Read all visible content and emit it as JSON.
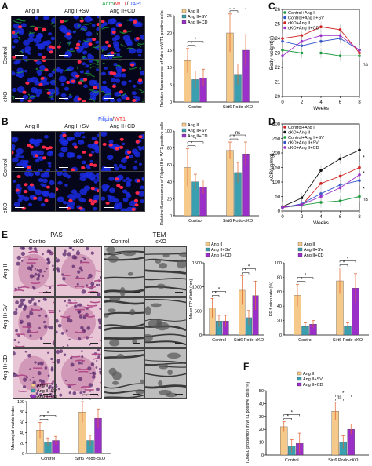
{
  "panels": {
    "A": {
      "letter": "A",
      "stain": {
        "p1": "Adrp",
        "sep1": "/",
        "p2": "WT1",
        "sep2": "/",
        "p3": "DAPI",
        "c1": "#22b14c",
        "c2": "#ff3030",
        "c3": "#3355ff"
      },
      "columns": [
        "Ang II",
        "Ang II+SV",
        "Ang II+CD"
      ],
      "rows": [
        "Control",
        "cKO"
      ],
      "chart": {
        "ylabel": "Relative fluorescence of Adrp in WT1 positive cells",
        "yticks": [
          "0",
          "5",
          "10",
          "15",
          "20",
          "25"
        ],
        "ylim": [
          0,
          25
        ],
        "groups": [
          "Control",
          "Sirt6 Podo-cKO"
        ],
        "legend": [
          "Ang II",
          "Ang II+SV",
          "Ang II+CD"
        ],
        "sig": [
          "*",
          "*",
          "*",
          "ns"
        ]
      }
    },
    "B": {
      "letter": "B",
      "stain": {
        "p1": "Filipin",
        "sep1": "/",
        "p2": "WT1",
        "c1": "#3355ff",
        "c2": "#ff3030"
      },
      "columns": [
        "Ang II",
        "Ang II+SV",
        "Ang II+CD"
      ],
      "rows": [
        "Control",
        "cKO"
      ],
      "chart": {
        "ylabel": "Relative fluorescence of Filipin III in WT1 positive cells",
        "yticks": [
          "0",
          "20",
          "40",
          "60",
          "80",
          "100"
        ],
        "ylim": [
          0,
          100
        ],
        "groups": [
          "Control",
          "Sirt6 Podo-cKO"
        ],
        "legend": [
          "Ang II",
          "Ang II+SV",
          "Ang II+CD"
        ],
        "sig": [
          "*",
          "*",
          "*",
          "ns"
        ]
      }
    },
    "C": {
      "letter": "C",
      "ylabel": "Body weight(g)",
      "xlabel": "Weeks",
      "yticks": [
        "20",
        "21",
        "22",
        "23",
        "24",
        "25",
        "26"
      ],
      "xticks": [
        "0",
        "2",
        "4",
        "6",
        "8"
      ],
      "legend": [
        "Control+Ang II",
        "Control+Ang II+SV",
        "cKO+Ang II",
        "cKO+Ang II+CD"
      ],
      "ns": "ns"
    },
    "D": {
      "letter": "D",
      "ylabel": "ACR(μg/mg)",
      "xlabel": "Weeks",
      "yticks": [
        "0",
        "50",
        "100",
        "150",
        "200",
        "250",
        "300"
      ],
      "xticks": [
        "0",
        "2",
        "4",
        "6",
        "8"
      ],
      "legend": [
        "Control+Ang II",
        "cKO+Ang II",
        "Control+Ang II+SV",
        "cKO+Ang II+SV",
        "cKO+Ang II+CD"
      ],
      "marks": [
        "*",
        "*",
        "*",
        "ns"
      ]
    },
    "E": {
      "letter": "E",
      "pas_title": "PAS",
      "tem_title": "TEM",
      "columns": [
        "Control",
        "cKO",
        "Control",
        "cKO"
      ],
      "rows": [
        "Ang II",
        "Ang II+SV",
        "Ang II+CD"
      ],
      "fp_width": {
        "ylabel": "Mean FP Width (nm)",
        "yticks": [
          "0",
          "500",
          "1000",
          "1500"
        ],
        "groups": [
          "Control",
          "Sirt6 Podo-cKO"
        ],
        "legend": [
          "Ang II",
          "Ang II+SV",
          "Ang II+CD"
        ],
        "sig": [
          "*",
          "*",
          "*",
          "*"
        ]
      },
      "fusion": {
        "ylabel": "FP fusion rate (%)",
        "yticks": [
          "0",
          "20",
          "40",
          "60",
          "80",
          "100"
        ],
        "groups": [
          "Control",
          "Sirt6 Podo-cKO"
        ],
        "legend": [
          "Ang II",
          "Ang II+SV",
          "Ang II+CD"
        ],
        "sig": [
          "*",
          "*",
          "*",
          "*"
        ]
      },
      "mesangial": {
        "ylabel": "Mesangial matrix index",
        "yticks": [
          "0",
          "20",
          "40",
          "60",
          "80",
          "100"
        ],
        "groups": [
          "Control",
          "Sirt6 Podo-cKO"
        ],
        "legend": [
          "Ang II",
          "Ang II+SV",
          "Ang II+CD"
        ],
        "sig": [
          "*",
          "*",
          "*",
          "*"
        ]
      }
    },
    "F": {
      "letter": "F",
      "ylabel": "TUNEL proportion in WT1 positive cells(%)",
      "yticks": [
        "0",
        "10",
        "20",
        "30",
        "40",
        "50"
      ],
      "groups": [
        "Control",
        "Sirt6 Podo-cKO"
      ],
      "legend": [
        "Ang II",
        "Ang II+SV",
        "Ang II+CD"
      ],
      "sig": [
        "*",
        "*",
        "ns",
        "*"
      ]
    }
  },
  "colors": {
    "angII": "#f5c98a",
    "sv": "#3aa0b0",
    "cd": "#9b30c8",
    "err": "#e0602a"
  },
  "chart_data": [
    {
      "type": "bar",
      "panel": "A",
      "categories": [
        "Control",
        "Sirt6 Podo-cKO"
      ],
      "series": [
        {
          "name": "Ang II",
          "values": [
            12,
            20
          ]
        },
        {
          "name": "Ang II+SV",
          "values": [
            6.5,
            8
          ]
        },
        {
          "name": "Ang II+CD",
          "values": [
            7,
            15
          ]
        }
      ],
      "errors": [
        [
          3.5,
          5.5
        ],
        [
          2.5,
          3
        ],
        [
          2.5,
          4.5
        ]
      ],
      "ylim": [
        0,
        25
      ]
    },
    {
      "type": "bar",
      "panel": "B",
      "categories": [
        "Control",
        "Sirt6 Podo-cKO"
      ],
      "series": [
        {
          "name": "Ang II",
          "values": [
            57,
            77
          ]
        },
        {
          "name": "Ang II+SV",
          "values": [
            40,
            51
          ]
        },
        {
          "name": "Ang II+CD",
          "values": [
            34,
            73
          ]
        }
      ],
      "errors": [
        [
          22,
          10
        ],
        [
          9,
          12
        ],
        [
          8,
          14
        ]
      ],
      "ylim": [
        0,
        100
      ]
    },
    {
      "type": "line",
      "panel": "C",
      "x": [
        0,
        2,
        4,
        6,
        8
      ],
      "series": [
        {
          "name": "Control+Ang II",
          "values": [
            23.2,
            23.0,
            23.0,
            22.8,
            22.8
          ]
        },
        {
          "name": "Control+Ang II+SV",
          "values": [
            23.8,
            23.5,
            23.8,
            24.0,
            23.2
          ]
        },
        {
          "name": "cKO+Ang II",
          "values": [
            24.0,
            24.2,
            24.8,
            24.6,
            23.0
          ]
        },
        {
          "name": "cKO+Ang II+CD",
          "values": [
            22.8,
            23.8,
            24.2,
            24.2,
            23.2
          ]
        }
      ],
      "ylim": [
        20,
        26
      ]
    },
    {
      "type": "line",
      "panel": "D",
      "x": [
        0,
        2,
        4,
        6,
        8
      ],
      "series": [
        {
          "name": "Control+Ang II",
          "values": [
            15,
            20,
            95,
            120,
            150
          ]
        },
        {
          "name": "cKO+Ang II",
          "values": [
            15,
            45,
            140,
            180,
            210
          ]
        },
        {
          "name": "Control+Ang II+SV",
          "values": [
            12,
            20,
            30,
            35,
            50
          ]
        },
        {
          "name": "cKO+Ang II+SV",
          "values": [
            12,
            25,
            60,
            90,
            105
          ]
        },
        {
          "name": "cKO+Ang II+CD",
          "values": [
            12,
            22,
            50,
            80,
            125
          ]
        }
      ],
      "ylim": [
        0,
        300
      ]
    },
    {
      "type": "bar",
      "panel": "E-fp",
      "categories": [
        "Control",
        "Sirt6 Podo-cKO"
      ],
      "series": [
        {
          "name": "Ang II",
          "values": [
            560,
            930
          ]
        },
        {
          "name": "Ang II+SV",
          "values": [
            290,
            360
          ]
        },
        {
          "name": "Ang II+CD",
          "values": [
            290,
            820
          ]
        }
      ],
      "errors": [
        [
          200,
          300
        ],
        [
          120,
          150
        ],
        [
          120,
          300
        ]
      ],
      "ylim": [
        0,
        1500
      ]
    },
    {
      "type": "bar",
      "panel": "E-fusion",
      "categories": [
        "Control",
        "Sirt6 Podo-cKO"
      ],
      "series": [
        {
          "name": "Ang II",
          "values": [
            55,
            75
          ]
        },
        {
          "name": "Ang II+SV",
          "values": [
            12,
            12
          ]
        },
        {
          "name": "Ang II+CD",
          "values": [
            15,
            65
          ]
        }
      ],
      "errors": [
        [
          15,
          18
        ],
        [
          5,
          5
        ],
        [
          5,
          20
        ]
      ],
      "ylim": [
        0,
        100
      ]
    },
    {
      "type": "bar",
      "panel": "E-mesangial",
      "categories": [
        "Control",
        "Sirt6 Podo-cKO"
      ],
      "series": [
        {
          "name": "Ang II",
          "values": [
            45,
            80
          ]
        },
        {
          "name": "Ang II+SV",
          "values": [
            22,
            25
          ]
        },
        {
          "name": "Ang II+CD",
          "values": [
            25,
            68
          ]
        }
      ],
      "errors": [
        [
          15,
          20
        ],
        [
          8,
          10
        ],
        [
          8,
          18
        ]
      ],
      "ylim": [
        0,
        100
      ]
    },
    {
      "type": "bar",
      "panel": "F",
      "categories": [
        "Control",
        "Sirt6 Podo-cKO"
      ],
      "series": [
        {
          "name": "Ang II",
          "values": [
            22,
            34
          ]
        },
        {
          "name": "Ang II+SV",
          "values": [
            7,
            10
          ]
        },
        {
          "name": "Ang II+CD",
          "values": [
            9,
            20
          ]
        }
      ],
      "errors": [
        [
          4,
          7
        ],
        [
          5,
          5
        ],
        [
          8,
          4
        ]
      ],
      "ylim": [
        0,
        50
      ]
    }
  ]
}
